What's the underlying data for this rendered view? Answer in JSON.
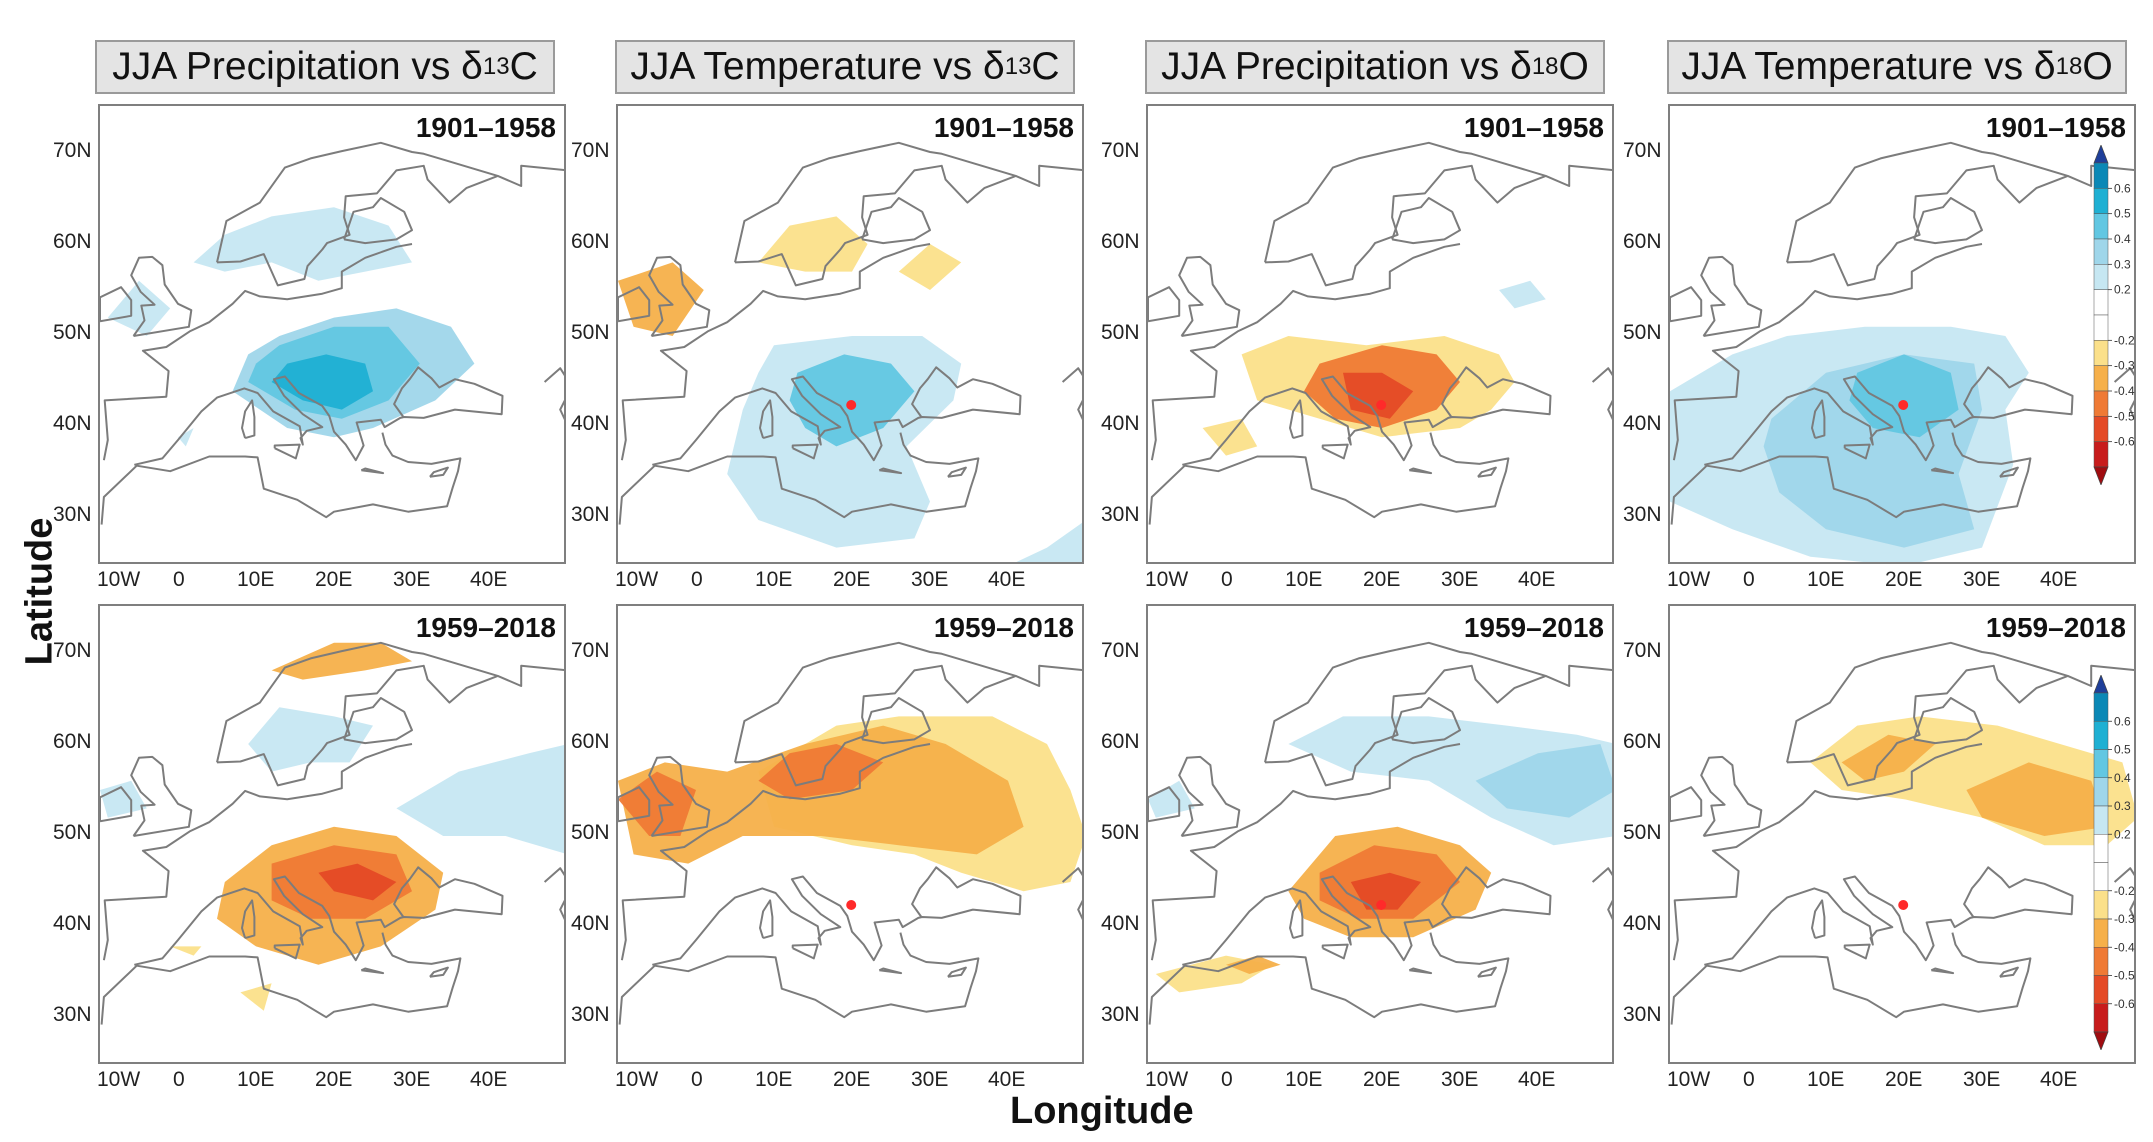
{
  "columns": [
    {
      "base": "JJA Precipitation vs δ",
      "sup": "13",
      "element": "C"
    },
    {
      "base": "JJA Temperature  vs δ",
      "sup": "13",
      "element": "C"
    },
    {
      "base": "JJA Precipitation vs δ",
      "sup": "18",
      "element": "O"
    },
    {
      "base": "JJA Temperature  vs δ",
      "sup": "18",
      "element": "O"
    }
  ],
  "periods": [
    "1901–1958",
    "1959–2018"
  ],
  "lat_ticks": [
    "70N",
    "60N",
    "50N",
    "40N",
    "30N"
  ],
  "lon_ticks": [
    "10W",
    "0",
    "10E",
    "20E",
    "30E",
    "40E"
  ],
  "axis_titles": {
    "x": "Longitude",
    "y": "Latitude"
  },
  "colorbar_top": {
    "labels": [
      "0.6",
      "0.5",
      "0.4",
      "0.3",
      "0.2",
      "-0.2",
      "-0.3",
      "-0.4",
      "-0.5",
      "-0.6"
    ]
  },
  "colorbar_bottom": {
    "labels": [
      "0.6",
      "0.5",
      "0.4",
      "0.3",
      "0.2",
      "-0.2",
      "-0.3",
      "-0.4",
      "-0.5",
      "-0.6"
    ]
  },
  "colors": {
    "neg_colors": [
      "#fbe08a",
      "#f6b04a",
      "#ef7a35",
      "#e44a26",
      "#c81c1c"
    ],
    "pos_colors": [
      "#c6e7f2",
      "#9fd6ea",
      "#62c7e2",
      "#1fb0d3",
      "#0b88b6"
    ],
    "coast": "#7c7c7c",
    "site_marker": "#ff2a2a"
  },
  "site_marker": {
    "lon": 19.9,
    "lat": 42.5
  }
}
